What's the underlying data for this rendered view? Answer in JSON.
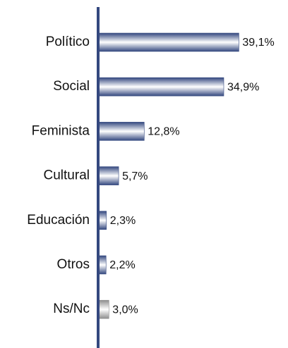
{
  "chart_data": {
    "type": "hbar",
    "categories": [
      "Político",
      "Social",
      "Feminista",
      "Cultural",
      "Educación",
      "Otros",
      "Ns/Nc"
    ],
    "values": [
      39.1,
      34.9,
      12.8,
      5.7,
      2.3,
      2.2,
      3.0
    ],
    "value_labels": [
      "39,1%",
      "34,9%",
      "12,8%",
      "5,7%",
      "2,3%",
      "2,2%",
      "3,0%"
    ],
    "colors": [
      "#34487f",
      "#34487f",
      "#34487f",
      "#34487f",
      "#34487f",
      "#34487f",
      "#8e8e8e"
    ]
  }
}
